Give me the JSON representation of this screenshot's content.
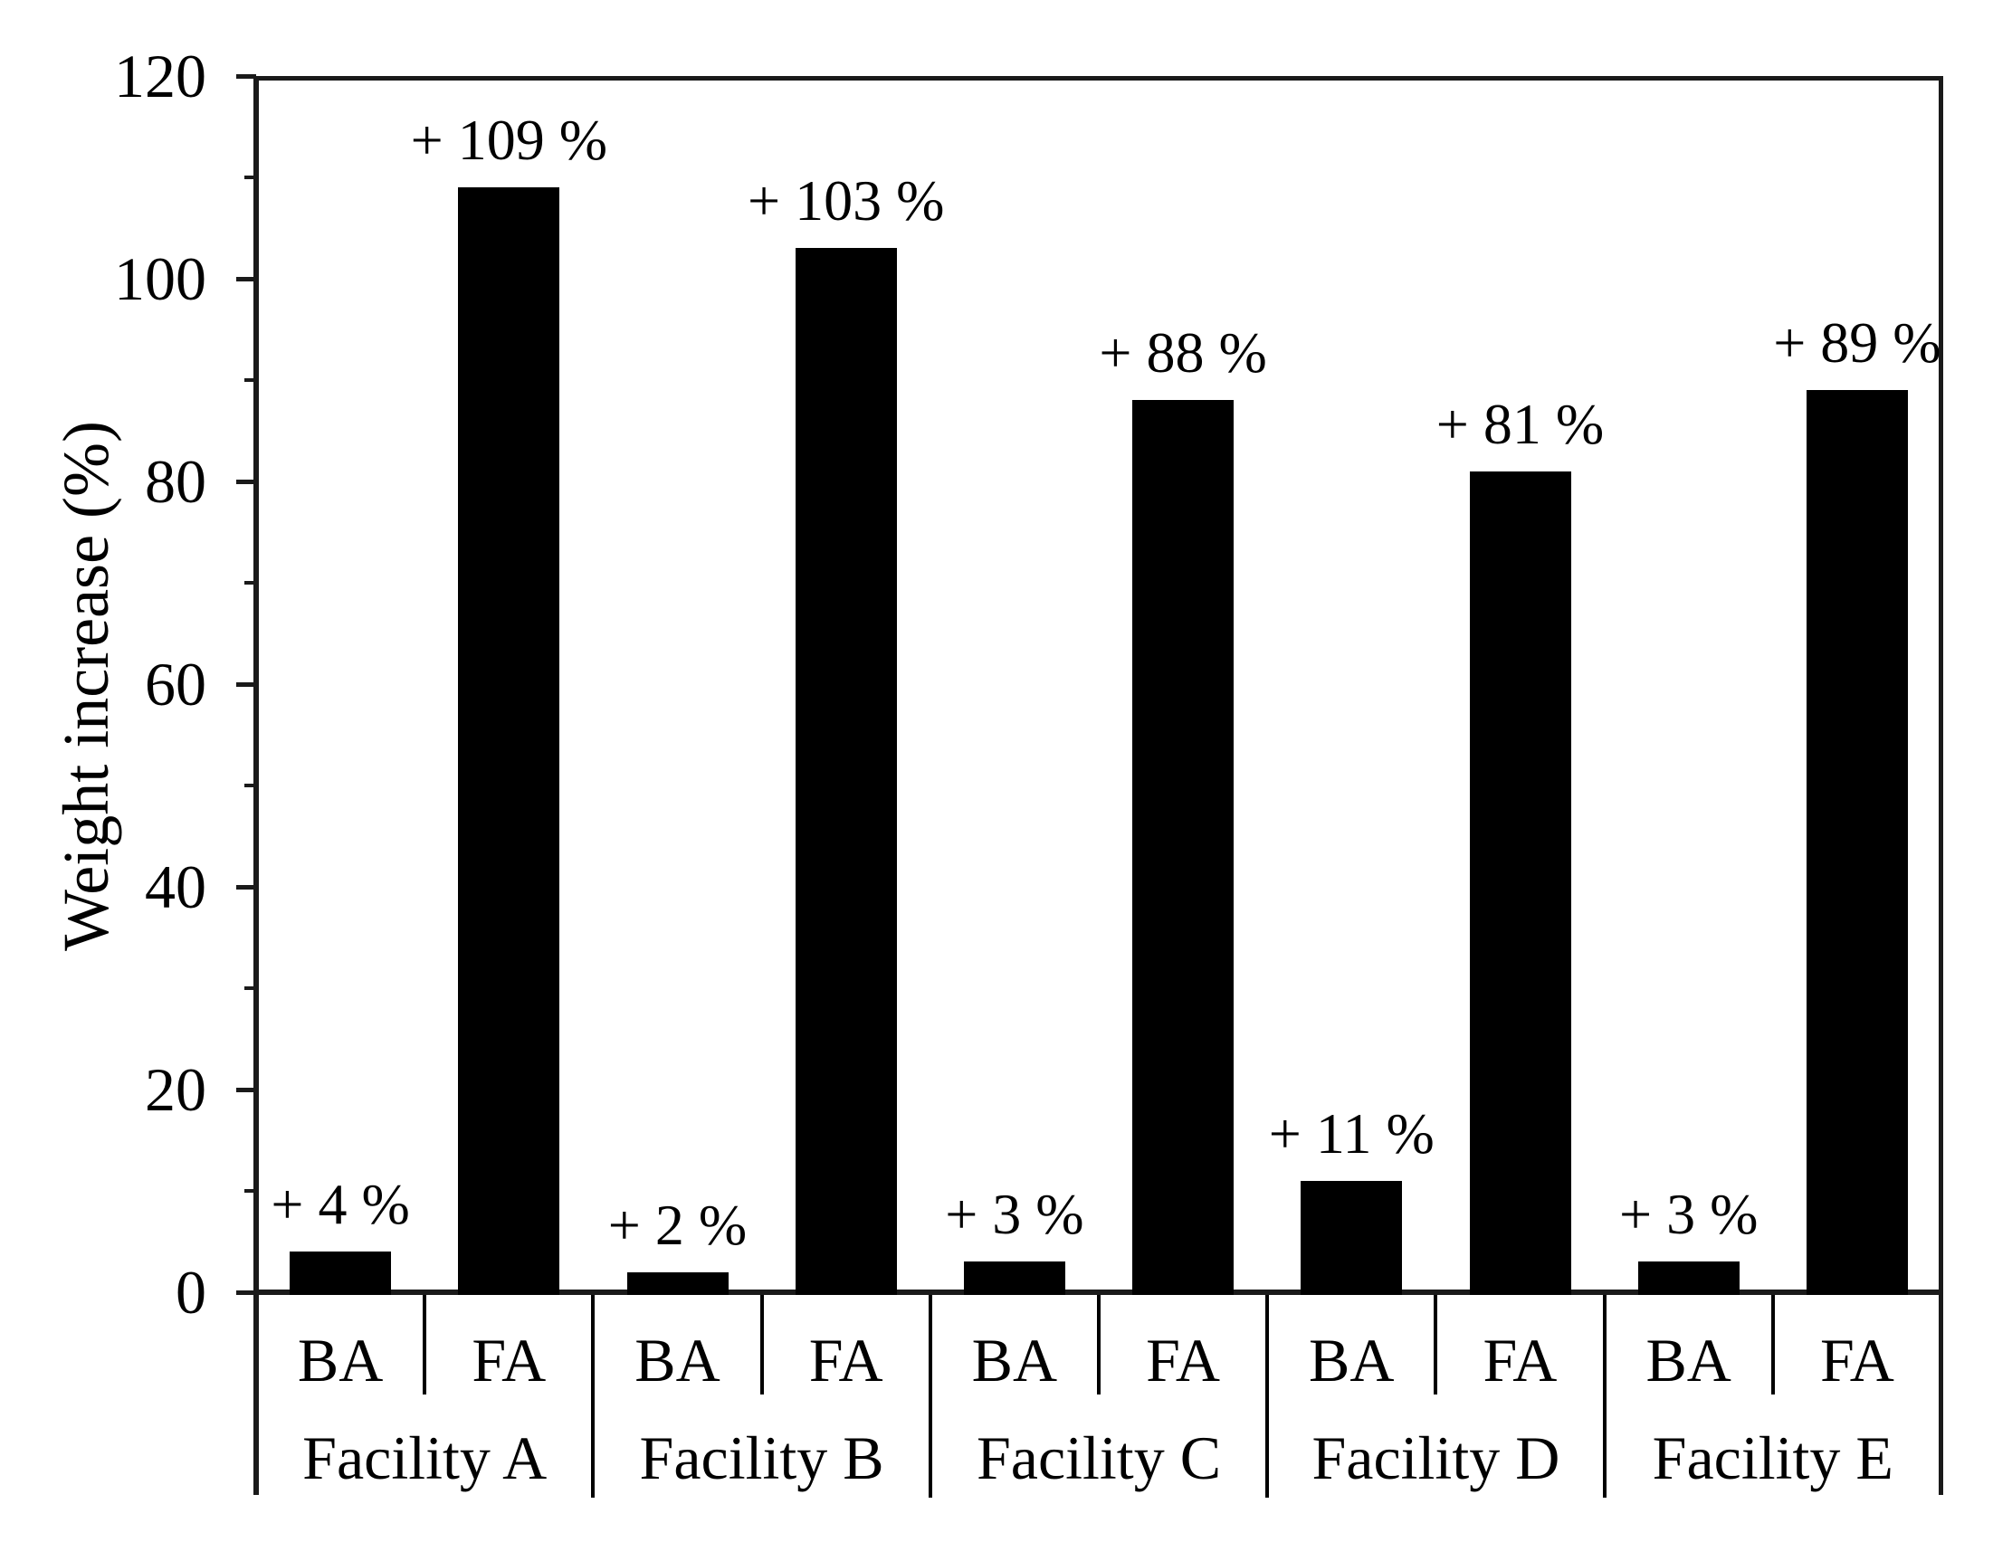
{
  "figure": {
    "background_color": "#ffffff",
    "bar_color": "#000000",
    "axis_color": "#1a1a1a"
  },
  "chart_data": {
    "type": "bar",
    "title": "",
    "xlabel": "",
    "ylabel": "Weight increase (%)",
    "ylim": [
      0,
      120
    ],
    "y_major_ticks": [
      0,
      20,
      40,
      60,
      80,
      100,
      120
    ],
    "y_minor_ticks": [
      10,
      30,
      50,
      70,
      90,
      110
    ],
    "grid": false,
    "legend_position": "none",
    "bar_color": "#000000",
    "categories": [
      "Facility A",
      "Facility B",
      "Facility C",
      "Facility D",
      "Facility E"
    ],
    "sub_categories": [
      "BA",
      "FA"
    ],
    "series": [
      {
        "name": "BA",
        "values": [
          4,
          2,
          3,
          11,
          3
        ],
        "annotations": [
          "+ 4 %",
          "+ 2 %",
          "+ 3 %",
          "+ 11 %",
          "+ 3 %"
        ]
      },
      {
        "name": "FA",
        "values": [
          109,
          103,
          88,
          81,
          89
        ],
        "annotations": [
          "+ 109 %",
          "+ 103 %",
          "+ 88 %",
          "+ 81 %",
          "+ 89 %"
        ]
      }
    ]
  }
}
